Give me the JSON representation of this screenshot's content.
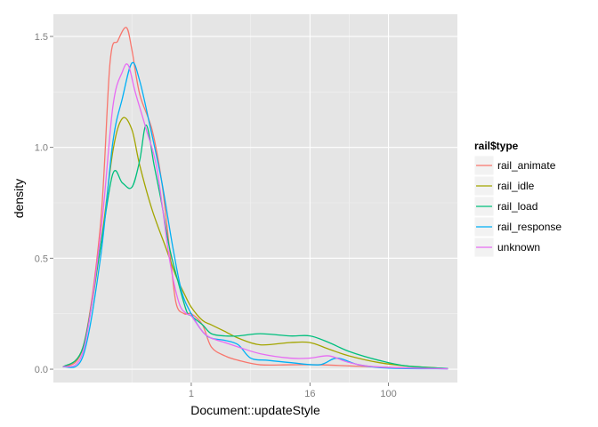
{
  "chart_data": {
    "type": "line",
    "xlabel": "Document::updateStyle",
    "ylabel": "density",
    "x_scale": "log",
    "x_ticks": [
      1,
      16,
      100
    ],
    "x_tick_labels": [
      "1",
      "16",
      "100"
    ],
    "xlim": [
      0.04,
      500
    ],
    "y_ticks": [
      0.0,
      0.5,
      1.0,
      1.5
    ],
    "y_tick_labels": [
      "0.0",
      "0.5",
      "1.0",
      "1.5"
    ],
    "ylim": [
      -0.06,
      1.6
    ],
    "grid": true,
    "legend": {
      "title": "rail$type",
      "placement": "right"
    },
    "series": [
      {
        "name": "rail_animate",
        "color": "#F8766D",
        "points": [
          [
            0.05,
            0.01
          ],
          [
            0.08,
            0.1
          ],
          [
            0.12,
            0.65
          ],
          [
            0.15,
            1.38
          ],
          [
            0.18,
            1.48
          ],
          [
            0.22,
            1.54
          ],
          [
            0.25,
            1.44
          ],
          [
            0.3,
            1.24
          ],
          [
            0.4,
            1.08
          ],
          [
            0.5,
            0.85
          ],
          [
            0.6,
            0.55
          ],
          [
            0.7,
            0.3
          ],
          [
            0.85,
            0.25
          ],
          [
            1.0,
            0.25
          ],
          [
            1.3,
            0.2
          ],
          [
            1.6,
            0.1
          ],
          [
            2.2,
            0.06
          ],
          [
            3,
            0.04
          ],
          [
            5,
            0.02
          ],
          [
            10,
            0.02
          ],
          [
            20,
            0.02
          ],
          [
            40,
            0.015
          ],
          [
            80,
            0.01
          ],
          [
            200,
            0.005
          ],
          [
            400,
            0.003
          ]
        ]
      },
      {
        "name": "rail_idle",
        "color": "#A3A500",
        "points": [
          [
            0.05,
            0.01
          ],
          [
            0.08,
            0.1
          ],
          [
            0.12,
            0.55
          ],
          [
            0.16,
            0.98
          ],
          [
            0.2,
            1.13
          ],
          [
            0.25,
            1.08
          ],
          [
            0.3,
            0.92
          ],
          [
            0.4,
            0.72
          ],
          [
            0.55,
            0.55
          ],
          [
            0.7,
            0.42
          ],
          [
            0.85,
            0.34
          ],
          [
            1.0,
            0.28
          ],
          [
            1.3,
            0.22
          ],
          [
            1.6,
            0.2
          ],
          [
            2.2,
            0.17
          ],
          [
            3,
            0.14
          ],
          [
            5,
            0.11
          ],
          [
            10,
            0.12
          ],
          [
            16,
            0.12
          ],
          [
            25,
            0.09
          ],
          [
            40,
            0.06
          ],
          [
            80,
            0.03
          ],
          [
            150,
            0.015
          ],
          [
            400,
            0.003
          ]
        ]
      },
      {
        "name": "rail_load",
        "color": "#00BF7D",
        "points": [
          [
            0.05,
            0.01
          ],
          [
            0.08,
            0.1
          ],
          [
            0.12,
            0.55
          ],
          [
            0.16,
            0.88
          ],
          [
            0.2,
            0.84
          ],
          [
            0.25,
            0.82
          ],
          [
            0.3,
            0.94
          ],
          [
            0.35,
            1.1
          ],
          [
            0.42,
            0.92
          ],
          [
            0.5,
            0.75
          ],
          [
            0.6,
            0.55
          ],
          [
            0.75,
            0.38
          ],
          [
            0.9,
            0.26
          ],
          [
            1.0,
            0.24
          ],
          [
            1.3,
            0.2
          ],
          [
            1.6,
            0.16
          ],
          [
            2.2,
            0.15
          ],
          [
            3,
            0.15
          ],
          [
            5,
            0.16
          ],
          [
            10,
            0.15
          ],
          [
            16,
            0.15
          ],
          [
            25,
            0.12
          ],
          [
            40,
            0.08
          ],
          [
            80,
            0.04
          ],
          [
            150,
            0.015
          ],
          [
            400,
            0.003
          ]
        ]
      },
      {
        "name": "rail_response",
        "color": "#00B0F6",
        "points": [
          [
            0.05,
            0.01
          ],
          [
            0.08,
            0.06
          ],
          [
            0.12,
            0.5
          ],
          [
            0.16,
            1.02
          ],
          [
            0.2,
            1.22
          ],
          [
            0.25,
            1.38
          ],
          [
            0.3,
            1.3
          ],
          [
            0.38,
            1.1
          ],
          [
            0.5,
            0.85
          ],
          [
            0.65,
            0.55
          ],
          [
            0.8,
            0.35
          ],
          [
            1.0,
            0.25
          ],
          [
            1.3,
            0.17
          ],
          [
            1.6,
            0.14
          ],
          [
            2.2,
            0.13
          ],
          [
            3,
            0.11
          ],
          [
            4,
            0.05
          ],
          [
            6,
            0.04
          ],
          [
            10,
            0.03
          ],
          [
            20,
            0.02
          ],
          [
            30,
            0.05
          ],
          [
            50,
            0.02
          ],
          [
            100,
            0.005
          ],
          [
            400,
            0.002
          ]
        ]
      },
      {
        "name": "unknown",
        "color": "#E76BF3",
        "points": [
          [
            0.05,
            0.01
          ],
          [
            0.08,
            0.08
          ],
          [
            0.12,
            0.6
          ],
          [
            0.16,
            1.18
          ],
          [
            0.2,
            1.34
          ],
          [
            0.23,
            1.37
          ],
          [
            0.27,
            1.25
          ],
          [
            0.35,
            1.08
          ],
          [
            0.45,
            0.9
          ],
          [
            0.6,
            0.5
          ],
          [
            0.75,
            0.3
          ],
          [
            0.9,
            0.25
          ],
          [
            1.0,
            0.24
          ],
          [
            1.3,
            0.17
          ],
          [
            1.6,
            0.14
          ],
          [
            2.2,
            0.12
          ],
          [
            3,
            0.1
          ],
          [
            5,
            0.07
          ],
          [
            10,
            0.05
          ],
          [
            16,
            0.05
          ],
          [
            25,
            0.06
          ],
          [
            40,
            0.03
          ],
          [
            80,
            0.01
          ],
          [
            400,
            0.002
          ]
        ]
      }
    ]
  }
}
